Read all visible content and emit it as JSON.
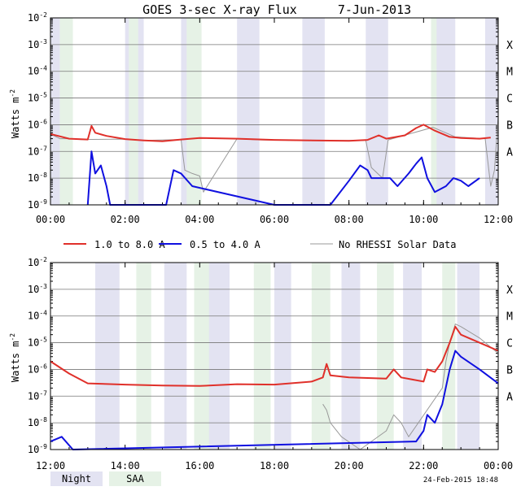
{
  "title": "GOES 3-sec X-ray Flux",
  "date": "7-Jun-2013",
  "footer_date": "24-Feb-2015 18:48",
  "ylabel": "Watts m",
  "ylabel_exp": "-2",
  "legend": [
    {
      "label": "1.0 to 8.0 A",
      "color": "#e0302a"
    },
    {
      "label": "0.5 to 4.0 A",
      "color": "#1010e0"
    },
    {
      "label": "No RHESSI Solar Data",
      "color": "#999999"
    }
  ],
  "keys": [
    {
      "label": "Night",
      "color": "#e3e3f2"
    },
    {
      "label": "SAA",
      "color": "#e6f2e6"
    }
  ],
  "colors": {
    "night": "#e3e3f2",
    "saa": "#e6f2e6",
    "long": "#e0302a",
    "short": "#1010e0",
    "nodata": "#999999",
    "grid": "#777777"
  },
  "chart_data": [
    {
      "type": "line",
      "panel": "top",
      "x_unit": "UT hours",
      "xlim": [
        0,
        12
      ],
      "xticks": [
        "00:00",
        "02:00",
        "04:00",
        "06:00",
        "08:00",
        "10:00",
        "12:00"
      ],
      "y_scale": "log",
      "ylim": [
        "1e-9",
        "1e-2"
      ],
      "yticks": [
        {
          "base": "10",
          "exp": "-2"
        },
        {
          "base": "10",
          "exp": "-3"
        },
        {
          "base": "10",
          "exp": "-4"
        },
        {
          "base": "10",
          "exp": "-5"
        },
        {
          "base": "10",
          "exp": "-6"
        },
        {
          "base": "10",
          "exp": "-7"
        },
        {
          "base": "10",
          "exp": "-8"
        },
        {
          "base": "10",
          "exp": "-9"
        }
      ],
      "classes": [
        "X",
        "M",
        "C",
        "B",
        "A"
      ],
      "night": [
        [
          0.0,
          0.25
        ],
        [
          2.0,
          2.5
        ],
        [
          3.5,
          4.0
        ],
        [
          5.0,
          5.6
        ],
        [
          6.75,
          7.35
        ],
        [
          8.45,
          9.05
        ],
        [
          10.25,
          10.85
        ],
        [
          11.65,
          12.0
        ]
      ],
      "saa": [
        [
          0.25,
          0.6
        ],
        [
          2.1,
          2.35
        ],
        [
          3.65,
          4.05
        ],
        [
          10.2,
          10.35
        ]
      ],
      "series": [
        {
          "name": "1.0 to 8.0 A",
          "points": [
            [
              0,
              4.5e-07
            ],
            [
              0.5,
              3e-07
            ],
            [
              1.0,
              2.8e-07
            ],
            [
              1.1,
              9e-07
            ],
            [
              1.2,
              5e-07
            ],
            [
              1.5,
              3.8e-07
            ],
            [
              2.0,
              2.9e-07
            ],
            [
              2.5,
              2.6e-07
            ],
            [
              3.0,
              2.4e-07
            ],
            [
              3.5,
              2.8e-07
            ],
            [
              4.0,
              3.2e-07
            ],
            [
              5.0,
              3e-07
            ],
            [
              6.0,
              2.7e-07
            ],
            [
              7.0,
              2.6e-07
            ],
            [
              8.0,
              2.5e-07
            ],
            [
              8.5,
              2.7e-07
            ],
            [
              8.8,
              4e-07
            ],
            [
              9.0,
              3e-07
            ],
            [
              9.5,
              4e-07
            ],
            [
              9.8,
              7.5e-07
            ],
            [
              10.0,
              1e-06
            ],
            [
              10.3,
              6e-07
            ],
            [
              10.7,
              3.5e-07
            ],
            [
              11.0,
              3.2e-07
            ],
            [
              11.5,
              3e-07
            ],
            [
              11.8,
              3.3e-07
            ]
          ]
        },
        {
          "name": "0.5 to 4.0 A",
          "points": [
            [
              1.0,
              1e-09
            ],
            [
              1.1,
              1e-07
            ],
            [
              1.2,
              1.5e-08
            ],
            [
              1.35,
              3e-08
            ],
            [
              1.5,
              5e-09
            ],
            [
              1.6,
              1e-09
            ],
            [
              3.1,
              1e-09
            ],
            [
              3.3,
              2e-08
            ],
            [
              3.5,
              1.5e-08
            ],
            [
              3.8,
              5e-09
            ],
            [
              6.0,
              1e-09
            ],
            [
              7.5,
              1e-09
            ],
            [
              8.0,
              8e-09
            ],
            [
              8.3,
              3e-08
            ],
            [
              8.5,
              2e-08
            ],
            [
              8.6,
              1e-08
            ],
            [
              9.1,
              1e-08
            ],
            [
              9.3,
              5e-09
            ],
            [
              9.6,
              1.5e-08
            ],
            [
              9.8,
              3.5e-08
            ],
            [
              9.95,
              6e-08
            ],
            [
              10.1,
              1e-08
            ],
            [
              10.3,
              3e-09
            ],
            [
              10.6,
              5e-09
            ],
            [
              10.8,
              1e-08
            ],
            [
              11.0,
              8e-09
            ],
            [
              11.2,
              5e-09
            ],
            [
              11.5,
              1e-08
            ]
          ]
        },
        {
          "name": "No RHESSI Solar Data",
          "points": [
            [
              0.0,
              4.5e-07
            ],
            [
              0.25,
              3e-07
            ],
            [
              0.6,
              3e-07
            ],
            [
              0.8,
              2.8e-07
            ],
            [
              2.0,
              2.9e-07
            ],
            [
              2.5,
              2.6e-07
            ],
            [
              3.5,
              2.8e-07
            ],
            [
              3.6,
              2e-08
            ],
            [
              3.8,
              1.5e-08
            ],
            [
              4.0,
              1.2e-08
            ],
            [
              4.1,
              3e-09
            ],
            [
              5.0,
              3e-07
            ],
            [
              5.6,
              2.7e-07
            ],
            [
              6.75,
              2.6e-07
            ],
            [
              7.35,
              2.6e-07
            ],
            [
              8.45,
              2.6e-07
            ],
            [
              8.6,
              2.5e-08
            ],
            [
              8.9,
              1e-08
            ],
            [
              9.05,
              2.7e-07
            ],
            [
              10.25,
              8e-07
            ],
            [
              10.85,
              3.5e-07
            ],
            [
              11.65,
              3e-07
            ],
            [
              11.8,
              5e-09
            ],
            [
              11.9,
              2e-08
            ],
            [
              12.0,
              2e-06
            ]
          ]
        }
      ]
    },
    {
      "type": "line",
      "panel": "bottom",
      "x_unit": "UT hours",
      "xlim": [
        12,
        24
      ],
      "xticks": [
        "12:00",
        "14:00",
        "16:00",
        "18:00",
        "20:00",
        "22:00",
        "00:00"
      ],
      "y_scale": "log",
      "ylim": [
        "1e-9",
        "1e-2"
      ],
      "yticks": [
        {
          "base": "10",
          "exp": "-2"
        },
        {
          "base": "10",
          "exp": "-3"
        },
        {
          "base": "10",
          "exp": "-4"
        },
        {
          "base": "10",
          "exp": "-5"
        },
        {
          "base": "10",
          "exp": "-6"
        },
        {
          "base": "10",
          "exp": "-7"
        },
        {
          "base": "10",
          "exp": "-8"
        },
        {
          "base": "10",
          "exp": "-9"
        }
      ],
      "classes": [
        "X",
        "M",
        "C",
        "B",
        "A"
      ],
      "night": [
        [
          13.2,
          13.85
        ],
        [
          15.05,
          15.65
        ],
        [
          16.15,
          16.8
        ],
        [
          18.0,
          18.45
        ],
        [
          19.8,
          20.3
        ],
        [
          21.45,
          21.95
        ],
        [
          22.9,
          23.5
        ]
      ],
      "saa": [
        [
          14.3,
          14.7
        ],
        [
          15.85,
          16.25
        ],
        [
          17.45,
          17.9
        ],
        [
          19.0,
          19.5
        ],
        [
          20.75,
          21.2
        ],
        [
          22.5,
          22.85
        ]
      ],
      "series": [
        {
          "name": "1.0 to 8.0 A",
          "points": [
            [
              12.0,
              2e-06
            ],
            [
              12.5,
              7e-07
            ],
            [
              13.0,
              3e-07
            ],
            [
              14.0,
              2.7e-07
            ],
            [
              15.0,
              2.5e-07
            ],
            [
              16.0,
              2.4e-07
            ],
            [
              17.0,
              2.8e-07
            ],
            [
              18.0,
              2.7e-07
            ],
            [
              19.0,
              3.5e-07
            ],
            [
              19.3,
              5e-07
            ],
            [
              19.4,
              1.6e-06
            ],
            [
              19.5,
              6e-07
            ],
            [
              20.0,
              5e-07
            ],
            [
              21.0,
              4.5e-07
            ],
            [
              21.2,
              1e-06
            ],
            [
              21.4,
              5e-07
            ],
            [
              22.0,
              3.5e-07
            ],
            [
              22.1,
              1e-06
            ],
            [
              22.3,
              8e-07
            ],
            [
              22.5,
              2e-06
            ],
            [
              22.7,
              1e-05
            ],
            [
              22.85,
              4e-05
            ],
            [
              23.0,
              2e-05
            ],
            [
              23.5,
              1e-05
            ],
            [
              24.0,
              5e-06
            ]
          ]
        },
        {
          "name": "0.5 to 4.0 A",
          "points": [
            [
              12.0,
              2e-09
            ],
            [
              12.3,
              3e-09
            ],
            [
              12.6,
              1e-09
            ],
            [
              21.8,
              2e-09
            ],
            [
              22.0,
              5e-09
            ],
            [
              22.1,
              2e-08
            ],
            [
              22.3,
              1e-08
            ],
            [
              22.5,
              5e-08
            ],
            [
              22.7,
              1e-06
            ],
            [
              22.85,
              5e-06
            ],
            [
              23.0,
              3e-06
            ],
            [
              23.5,
              1e-06
            ],
            [
              24.0,
              3e-07
            ]
          ]
        },
        {
          "name": "No RHESSI Solar Data",
          "points": [
            [
              19.3,
              5e-08
            ],
            [
              19.4,
              3e-08
            ],
            [
              19.5,
              1e-08
            ],
            [
              19.8,
              3e-09
            ],
            [
              20.3,
              1e-09
            ],
            [
              21.0,
              5e-09
            ],
            [
              21.2,
              2e-08
            ],
            [
              21.4,
              1e-08
            ],
            [
              21.6,
              3e-09
            ],
            [
              22.5,
              2e-07
            ],
            [
              22.6,
              2e-06
            ],
            [
              22.7,
              1e-05
            ],
            [
              22.85,
              5e-05
            ],
            [
              23.0,
              4e-05
            ],
            [
              23.5,
              1.5e-05
            ],
            [
              24.0,
              4e-06
            ]
          ]
        }
      ]
    }
  ]
}
